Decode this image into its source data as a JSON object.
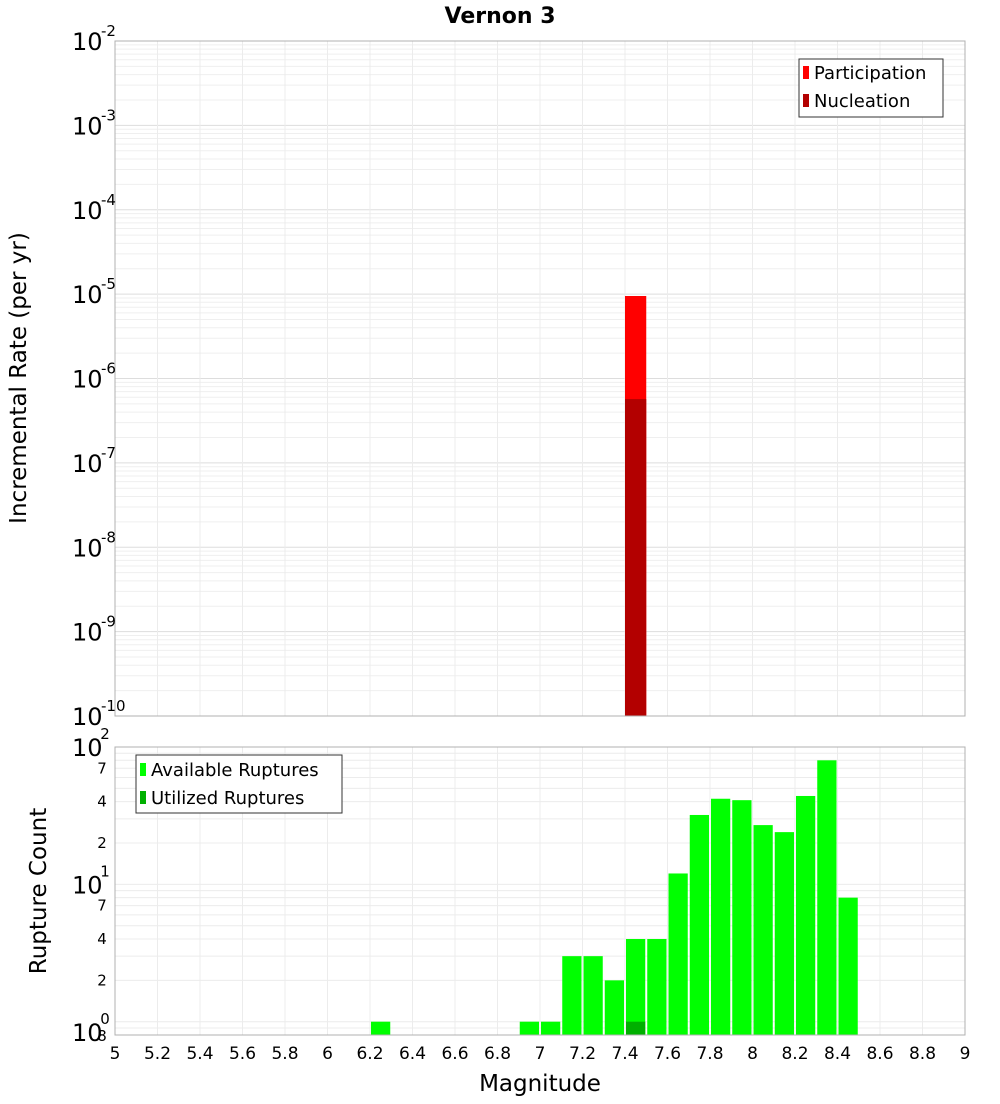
{
  "chart_data": [
    {
      "type": "bar",
      "title": "Vernon 3",
      "ylabel": "Incremental Rate (per yr)",
      "y_scale": "log",
      "ylim": [
        1e-10,
        0.01
      ],
      "xlim": [
        5,
        9
      ],
      "y_tick_labels": [
        {
          "base": "10",
          "exp": "-2"
        },
        {
          "base": "10",
          "exp": "-3"
        },
        {
          "base": "10",
          "exp": "-4"
        },
        {
          "base": "10",
          "exp": "-5"
        },
        {
          "base": "10",
          "exp": "-6"
        },
        {
          "base": "10",
          "exp": "-7"
        },
        {
          "base": "10",
          "exp": "-8"
        },
        {
          "base": "10",
          "exp": "-9"
        },
        {
          "base": "10",
          "exp": "-10"
        }
      ],
      "legend": {
        "placement": "top-right"
      },
      "grid": true,
      "series": [
        {
          "name": "Participation",
          "color": "#ff0000",
          "x": [
            7.45
          ],
          "values": [
            9.5e-06
          ]
        },
        {
          "name": "Nucleation",
          "color": "#b30000",
          "x": [
            7.45
          ],
          "values": [
            5.7e-07
          ]
        }
      ]
    },
    {
      "type": "bar",
      "xlabel": "Magnitude",
      "ylabel": "Rupture Count",
      "y_scale": "log",
      "ylim": [
        0.8,
        100
      ],
      "xlim": [
        5,
        9
      ],
      "x_tick_labels": [
        "5",
        "5.2",
        "5.4",
        "5.6",
        "5.8",
        "6",
        "6.2",
        "6.4",
        "6.6",
        "6.8",
        "7",
        "7.2",
        "7.4",
        "7.6",
        "7.8",
        "8",
        "8.2",
        "8.4",
        "8.6",
        "8.8",
        "9"
      ],
      "y_major_labels": [
        {
          "base": "10",
          "exp": "2"
        },
        {
          "base": "10",
          "exp": "1"
        },
        {
          "base": "10",
          "exp": "0"
        }
      ],
      "y_minor_labels": [
        "7",
        "4",
        "2",
        "7",
        "4",
        "2",
        "8"
      ],
      "legend": {
        "placement": "top-left"
      },
      "grid": true,
      "series": [
        {
          "name": "Available Ruptures",
          "color": "#00ff00",
          "x": [
            6.25,
            6.95,
            7.05,
            7.15,
            7.25,
            7.35,
            7.45,
            7.55,
            7.65,
            7.75,
            7.85,
            7.95,
            8.05,
            8.15,
            8.25,
            8.35,
            8.45
          ],
          "values": [
            1,
            1,
            1,
            3,
            3,
            2,
            4,
            4,
            12,
            32,
            42,
            41,
            27,
            24,
            44,
            80,
            8
          ]
        },
        {
          "name": "Utilized Ruptures",
          "color": "#00b000",
          "x": [
            7.45
          ],
          "values": [
            1
          ]
        }
      ]
    }
  ]
}
